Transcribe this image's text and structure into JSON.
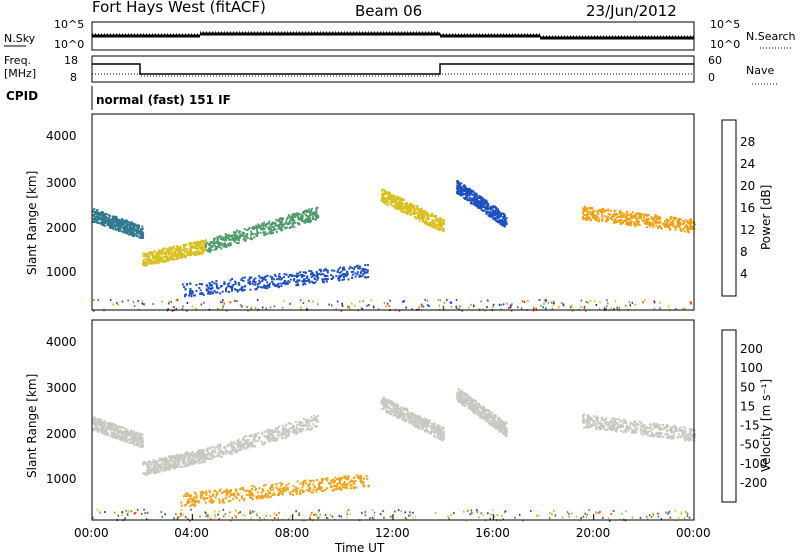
{
  "header": {
    "station": "Fort Hays West (fitACF)",
    "beam": "Beam 06",
    "date": "23/Jun/2012"
  },
  "status_panels": {
    "nsky_label": "N.Sky",
    "nsearch_label": "N.Search",
    "noise_left_ticks": [
      "10^5",
      "10^0"
    ],
    "noise_right_ticks": [
      "10^5",
      "10^0"
    ],
    "freq_label": "Freq.",
    "freq_unit": "[MHz]",
    "freq_ticks": [
      "18",
      "8"
    ],
    "nave_label": "Nave",
    "nave_ticks": [
      "60",
      "0"
    ],
    "cpid_label": "CPID",
    "cpid_text": "normal (fast) 151 IF"
  },
  "chart_data": [
    {
      "type": "heatmap",
      "name": "Power",
      "xlabel": "Time UT",
      "ylabel": "Slant Range [km]",
      "xlim": [
        0,
        24
      ],
      "ylim": [
        200,
        4600
      ],
      "yticks": [
        "4000",
        "3000",
        "2000",
        "1000"
      ],
      "colorbar_label": "Power [dB]",
      "colorbar_ticks": [
        "28",
        "24",
        "20",
        "16",
        "12",
        "8",
        "4"
      ],
      "colorbar_colors": [
        "#1020e0",
        "#1e4fbf",
        "#2f7a8e",
        "#4c9a6a",
        "#7fb24a",
        "#d8c020",
        "#f0a010",
        "#f07010",
        "#e84010",
        "#e01010"
      ],
      "scatter_bands": [
        {
          "t0": 0.0,
          "t1": 2.0,
          "r0": 2350,
          "r1": 1950,
          "color": "#2f7a8e"
        },
        {
          "t0": 2.0,
          "t1": 4.5,
          "r0": 1350,
          "r1": 1650,
          "color": "#d8c020"
        },
        {
          "t0": 4.5,
          "t1": 9.0,
          "r0": 1650,
          "r1": 2400,
          "color": "#4c9a6a"
        },
        {
          "t0": 3.5,
          "t1": 11.0,
          "r0": 650,
          "r1": 1100,
          "color": "#1e4fbf"
        },
        {
          "t0": 11.5,
          "t1": 14.0,
          "r0": 2800,
          "r1": 2100,
          "color": "#d8c020"
        },
        {
          "t0": 14.5,
          "t1": 16.5,
          "r0": 3000,
          "r1": 2200,
          "color": "#1e4fbf"
        },
        {
          "t0": 19.5,
          "t1": 24.0,
          "r0": 2400,
          "r1": 2100,
          "color": "#f0a010"
        }
      ]
    },
    {
      "type": "heatmap",
      "name": "Velocity",
      "xlabel": "Time UT",
      "ylabel": "Slant Range [km]",
      "xlim": [
        0,
        24
      ],
      "ylim": [
        200,
        4600
      ],
      "yticks": [
        "4000",
        "3000",
        "2000",
        "1000"
      ],
      "xticks": [
        "00:00",
        "04:00",
        "08:00",
        "12:00",
        "16:00",
        "20:00",
        "00:00"
      ],
      "colorbar_label": "Velocity [m s⁻¹]",
      "colorbar_ticks": [
        "200",
        "100",
        "50",
        "15",
        "-15",
        "-50",
        "-100",
        "-200"
      ],
      "colorbar_colors": [
        "#1a3fbf",
        "#2a6a5a",
        "#3a9a3a",
        "#8ed24a",
        "#c8c8c0",
        "#f0c010",
        "#f09010",
        "#f06010",
        "#e82010"
      ],
      "scatter_bands": [
        {
          "t0": 0.0,
          "t1": 2.0,
          "r0": 2350,
          "r1": 1950,
          "color": "#c8c8c0"
        },
        {
          "t0": 2.0,
          "t1": 4.5,
          "r0": 1350,
          "r1": 1650,
          "color": "#c8c8c0"
        },
        {
          "t0": 4.5,
          "t1": 9.0,
          "r0": 1650,
          "r1": 2400,
          "color": "#c8c8c0"
        },
        {
          "t0": 3.5,
          "t1": 11.0,
          "r0": 650,
          "r1": 1100,
          "color": "#f0a010"
        },
        {
          "t0": 11.5,
          "t1": 14.0,
          "r0": 2800,
          "r1": 2100,
          "color": "#c8c8c0"
        },
        {
          "t0": 14.5,
          "t1": 16.5,
          "r0": 3000,
          "r1": 2200,
          "color": "#c8c8c0"
        },
        {
          "t0": 19.5,
          "t1": 24.0,
          "r0": 2400,
          "r1": 2100,
          "color": "#c8c8c0"
        }
      ]
    }
  ]
}
